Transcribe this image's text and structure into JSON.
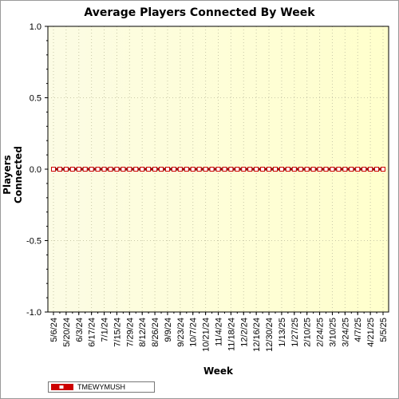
{
  "chart_data": {
    "type": "line",
    "title": "Average Players Connected By Week",
    "xlabel": "Week",
    "ylabel": "Players Connected",
    "ylim": [
      -1.0,
      1.0
    ],
    "y_ticks": [
      "1.0",
      "0.5",
      "0.0",
      "-0.5",
      "-1.0"
    ],
    "x_tick_labels": [
      "5/6/24",
      "5/20/24",
      "6/3/24",
      "6/17/24",
      "7/1/24",
      "7/15/24",
      "7/29/24",
      "8/12/24",
      "8/26/24",
      "9/9/24",
      "9/23/24",
      "10/7/24",
      "10/21/24",
      "11/4/24",
      "11/18/24",
      "12/2/24",
      "12/16/24",
      "12/30/24",
      "1/13/25",
      "1/27/25",
      "2/10/25",
      "2/24/25",
      "3/10/25",
      "3/24/25",
      "4/7/25",
      "4/21/25",
      "5/5/25"
    ],
    "x": [
      "5/6/24",
      "5/13/24",
      "5/20/24",
      "5/27/24",
      "6/3/24",
      "6/10/24",
      "6/17/24",
      "6/24/24",
      "7/1/24",
      "7/8/24",
      "7/15/24",
      "7/22/24",
      "7/29/24",
      "8/5/24",
      "8/12/24",
      "8/19/24",
      "8/26/24",
      "9/2/24",
      "9/9/24",
      "9/16/24",
      "9/23/24",
      "9/30/24",
      "10/7/24",
      "10/14/24",
      "10/21/24",
      "10/28/24",
      "11/4/24",
      "11/11/24",
      "11/18/24",
      "11/25/24",
      "12/2/24",
      "12/9/24",
      "12/16/24",
      "12/23/24",
      "12/30/24",
      "1/6/25",
      "1/13/25",
      "1/20/25",
      "1/27/25",
      "2/3/25",
      "2/10/25",
      "2/17/25",
      "2/24/25",
      "3/3/25",
      "3/10/25",
      "3/17/25",
      "3/24/25",
      "3/31/25",
      "4/7/25",
      "4/14/25",
      "4/21/25",
      "4/28/25",
      "5/5/25"
    ],
    "series": [
      {
        "name": "TMEWYMUSH",
        "color": "#cc0000",
        "values": [
          0,
          0,
          0,
          0,
          0,
          0,
          0,
          0,
          0,
          0,
          0,
          0,
          0,
          0,
          0,
          0,
          0,
          0,
          0,
          0,
          0,
          0,
          0,
          0,
          0,
          0,
          0,
          0,
          0,
          0,
          0,
          0,
          0,
          0,
          0,
          0,
          0,
          0,
          0,
          0,
          0,
          0,
          0,
          0,
          0,
          0,
          0,
          0,
          0,
          0,
          0,
          0,
          0
        ]
      }
    ],
    "grid": true,
    "legend_position": "bottom-left",
    "background_gradient": [
      "#fcfce4",
      "#ffffcc"
    ]
  }
}
